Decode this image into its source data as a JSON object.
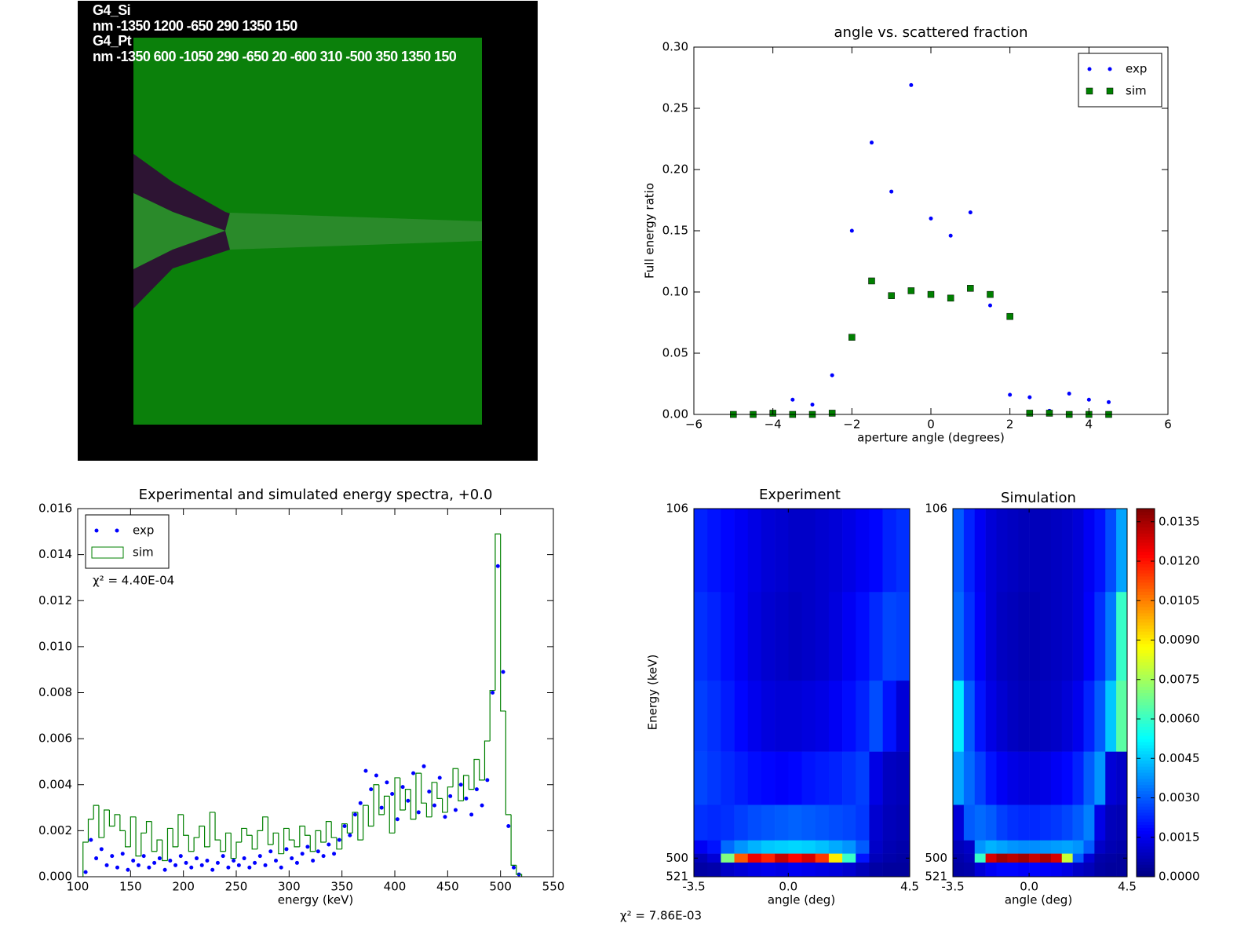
{
  "geometry": {
    "labels": [
      "G4_Si",
      "nm -1350 1200 -650 290 1350 150",
      "G4_Pt",
      "nm -1350 600 -1050 290 -650 20 -600 310 -500 350 1350 150"
    ]
  },
  "chart_data": [
    {
      "type": "scatter",
      "title": "angle vs. scattered fraction",
      "x_label": "aperture angle (degrees)",
      "y_label": "Full energy ratio",
      "x": [
        -5,
        -4.5,
        -4,
        -3.5,
        -3,
        -2.5,
        -2,
        -1.5,
        -1,
        -0.5,
        0,
        0.5,
        1,
        1.5,
        2,
        2.5,
        3,
        3.5,
        4,
        4.5
      ],
      "series": [
        {
          "name": "exp",
          "color": "#0000ff",
          "marker": "dot",
          "values": [
            0,
            0,
            0.001,
            0.012,
            0.008,
            0.032,
            0.15,
            0.222,
            0.182,
            0.269,
            0.16,
            0.146,
            0.165,
            0.089,
            0.016,
            0.014,
            0.003,
            0.017,
            0.012,
            0.01
          ]
        },
        {
          "name": "sim",
          "color": "#008000",
          "marker": "square",
          "values": [
            0,
            0,
            0.001,
            0,
            0,
            0.001,
            0.063,
            0.109,
            0.097,
            0.101,
            0.098,
            0.095,
            0.103,
            0.098,
            0.08,
            0.001,
            0.001,
            0,
            0,
            0
          ]
        }
      ],
      "xlim": [
        -6,
        6
      ],
      "xticks": [
        {
          "value": -6,
          "label": "−6"
        },
        {
          "value": -4,
          "label": "−4"
        },
        {
          "value": -2,
          "label": "−2"
        },
        0,
        2,
        4,
        6
      ],
      "ylim": [
        0,
        0.3
      ],
      "yticks": [
        {
          "value": 0,
          "label": "0.00"
        },
        {
          "value": 0.05,
          "label": "0.05"
        },
        {
          "value": 0.1,
          "label": "0.10"
        },
        {
          "value": 0.15,
          "label": "0.15"
        },
        {
          "value": 0.2,
          "label": "0.20"
        },
        {
          "value": 0.25,
          "label": "0.25"
        },
        {
          "value": 0.3,
          "label": "0.30"
        }
      ],
      "legend": "upper right"
    },
    {
      "type": "spectrum",
      "title": "Experimental and simulated energy spectra, +0.0",
      "x_label": "energy (keV)",
      "annotation": "χ² = 4.40E-04",
      "series": [
        {
          "name": "exp",
          "color": "#0000ff",
          "marker": "dot",
          "x": [
            107.5,
            112.5,
            117.5,
            122.5,
            127.5,
            132.5,
            137.5,
            142.5,
            147.5,
            152.5,
            157.5,
            162.5,
            167.5,
            172.5,
            177.5,
            182.5,
            187.5,
            192.5,
            197.5,
            202.5,
            207.5,
            212.5,
            217.5,
            222.5,
            227.5,
            232.5,
            237.5,
            242.5,
            247.5,
            252.5,
            257.5,
            262.5,
            267.5,
            272.5,
            277.5,
            282.5,
            287.5,
            292.5,
            297.5,
            302.5,
            307.5,
            312.5,
            317.5,
            322.5,
            327.5,
            332.5,
            337.5,
            342.5,
            347.5,
            352.5,
            357.5,
            362.5,
            367.5,
            372.5,
            377.5,
            382.5,
            387.5,
            392.5,
            397.5,
            402.5,
            407.5,
            412.5,
            417.5,
            422.5,
            427.5,
            432.5,
            437.5,
            442.5,
            447.5,
            452.5,
            457.5,
            462.5,
            467.5,
            472.5,
            477.5,
            482.5,
            487.5,
            492.5,
            497.5,
            502.5,
            507.5,
            512.5,
            517.5
          ],
          "values": [
            0.0002,
            0.0016,
            0.0008,
            0.0012,
            0.0005,
            0.0009,
            0.0004,
            0.001,
            0.0003,
            0.0007,
            0.0005,
            0.0009,
            0.0004,
            0.0006,
            0.0008,
            0.0003,
            0.0007,
            0.0005,
            0.0009,
            0.0006,
            0.0004,
            0.0008,
            0.0005,
            0.0007,
            0.0003,
            0.0006,
            0.0009,
            0.0004,
            0.0007,
            0.0005,
            0.0008,
            0.0004,
            0.0006,
            0.0009,
            0.0005,
            0.0011,
            0.0007,
            0.0004,
            0.0012,
            0.0008,
            0.0006,
            0.001,
            0.0013,
            0.0007,
            0.0011,
            0.0009,
            0.0014,
            0.001,
            0.0016,
            0.0022,
            0.0018,
            0.0027,
            0.0032,
            0.0046,
            0.0038,
            0.0044,
            0.003,
            0.0041,
            0.0036,
            0.0025,
            0.0039,
            0.0033,
            0.0045,
            0.0028,
            0.0048,
            0.0037,
            0.0031,
            0.0043,
            0.0026,
            0.0035,
            0.0029,
            0.004,
            0.0034,
            0.0027,
            0.0038,
            0.0031,
            0.0042,
            0.008,
            0.0135,
            0.0089,
            0.0022,
            0.0004,
            0.0001
          ]
        },
        {
          "name": "sim",
          "color": "#008000",
          "style": "step",
          "bins": [
            105,
            110,
            115,
            120,
            125,
            130,
            135,
            140,
            145,
            150,
            155,
            160,
            165,
            170,
            175,
            180,
            185,
            190,
            195,
            200,
            205,
            210,
            215,
            220,
            225,
            230,
            235,
            240,
            245,
            250,
            255,
            260,
            265,
            270,
            275,
            280,
            285,
            290,
            295,
            300,
            305,
            310,
            315,
            320,
            325,
            330,
            335,
            340,
            345,
            350,
            355,
            360,
            365,
            370,
            375,
            380,
            385,
            390,
            395,
            400,
            405,
            410,
            415,
            420,
            425,
            430,
            435,
            440,
            445,
            450,
            455,
            460,
            465,
            470,
            475,
            480,
            485,
            490,
            495,
            500,
            505,
            510,
            515,
            520
          ],
          "values": [
            0.0015,
            0.0025,
            0.0031,
            0.0017,
            0.0029,
            0.0022,
            0.0027,
            0.002,
            0.0013,
            0.0026,
            0.0009,
            0.0019,
            0.0024,
            0.0011,
            0.0016,
            0.0007,
            0.0021,
            0.0013,
            0.0027,
            0.0018,
            0.0011,
            0.0017,
            0.0022,
            0.0013,
            0.0028,
            0.0016,
            0.0011,
            0.0019,
            0.0008,
            0.0015,
            0.0021,
            0.0018,
            0.0012,
            0.002,
            0.0026,
            0.0014,
            0.0019,
            0.001,
            0.0021,
            0.0016,
            0.0013,
            0.0022,
            0.0018,
            0.0011,
            0.002,
            0.0015,
            0.0024,
            0.0017,
            0.0012,
            0.0023,
            0.0019,
            0.0028,
            0.0016,
            0.0031,
            0.0022,
            0.004,
            0.0027,
            0.0035,
            0.0019,
            0.0043,
            0.0029,
            0.0038,
            0.0025,
            0.0045,
            0.0032,
            0.0026,
            0.0041,
            0.0034,
            0.0028,
            0.0039,
            0.0047,
            0.0033,
            0.0044,
            0.0038,
            0.0051,
            0.0042,
            0.0059,
            0.0081,
            0.0149,
            0.0072,
            0.0027,
            0.0005,
            0.0001
          ]
        }
      ],
      "xlim": [
        100,
        550
      ],
      "xticks": [
        100,
        150,
        200,
        250,
        300,
        350,
        400,
        450,
        500,
        550
      ],
      "ylim": [
        0,
        0.016
      ],
      "yticks": [
        {
          "value": 0,
          "label": "0.000"
        },
        {
          "value": 0.002,
          "label": "0.002"
        },
        {
          "value": 0.004,
          "label": "0.004"
        },
        {
          "value": 0.006,
          "label": "0.006"
        },
        {
          "value": 0.008,
          "label": "0.008"
        },
        {
          "value": 0.01,
          "label": "0.010"
        },
        {
          "value": 0.012,
          "label": "0.012"
        },
        {
          "value": 0.014,
          "label": "0.014"
        },
        {
          "value": 0.016,
          "label": "0.016"
        }
      ],
      "legend": "upper left"
    },
    {
      "type": "heatmap",
      "title": "Experiment",
      "x_label": "angle (deg)",
      "y_label": "Energy (keV)",
      "annotation": "χ² = 7.86E-03",
      "xlim": [
        -3.5,
        4.5
      ],
      "xticks": [
        -3.5,
        {
          "value": 0,
          "label": "0.0"
        },
        4.5
      ],
      "ylim": [
        106,
        521
      ],
      "yticks": [
        106,
        500,
        521
      ],
      "yinvert": true,
      "colormap": "jet",
      "clim": [
        0,
        0.014
      ],
      "angle_bins": [
        -3.5,
        -3,
        -2.5,
        -2,
        -1.5,
        -1,
        -0.5,
        0,
        0.5,
        1,
        1.5,
        2,
        2.5,
        3,
        3.5,
        4,
        4.5
      ],
      "energy_bins": [
        106,
        200,
        300,
        380,
        440,
        480,
        495,
        505,
        521
      ],
      "z": [
        [
          0.0022,
          0.002,
          0.0018,
          0.0016,
          0.0014,
          0.0012,
          0.0011,
          0.001,
          0.001,
          0.0011,
          0.0012,
          0.0014,
          0.0016,
          0.0018,
          0.0022,
          0.0024
        ],
        [
          0.0024,
          0.0022,
          0.0019,
          0.0016,
          0.0013,
          0.0011,
          0.001,
          0.0009,
          0.001,
          0.0011,
          0.0013,
          0.0016,
          0.0019,
          0.0023,
          0.0027,
          0.0026
        ],
        [
          0.0026,
          0.0024,
          0.0021,
          0.0018,
          0.0015,
          0.0013,
          0.0012,
          0.0012,
          0.0013,
          0.0014,
          0.0016,
          0.0019,
          0.0022,
          0.0028,
          0.002,
          0.0012
        ],
        [
          0.0027,
          0.0025,
          0.0023,
          0.0021,
          0.0019,
          0.0018,
          0.0017,
          0.0018,
          0.002,
          0.0021,
          0.0022,
          0.0024,
          0.0026,
          0.0014,
          0.0009,
          0.0008
        ],
        [
          0.0024,
          0.0023,
          0.0024,
          0.0026,
          0.0028,
          0.0029,
          0.003,
          0.0031,
          0.003,
          0.0029,
          0.0028,
          0.0027,
          0.0025,
          0.0011,
          0.0008,
          0.0007
        ],
        [
          0.0016,
          0.002,
          0.0032,
          0.0038,
          0.0042,
          0.0045,
          0.0046,
          0.0047,
          0.0046,
          0.0044,
          0.0041,
          0.0038,
          0.003,
          0.001,
          0.0007,
          0.0006
        ],
        [
          0.0008,
          0.0012,
          0.007,
          0.011,
          0.0125,
          0.0118,
          0.013,
          0.0122,
          0.0128,
          0.0115,
          0.009,
          0.006,
          0.002,
          0.0008,
          0.0006,
          0.0005
        ],
        [
          0.0005,
          0.0006,
          0.001,
          0.0012,
          0.0014,
          0.0015,
          0.0014,
          0.0016,
          0.0015,
          0.0014,
          0.0013,
          0.0011,
          0.0008,
          0.0005,
          0.0004,
          0.0004
        ]
      ]
    },
    {
      "type": "heatmap",
      "title": "Simulation",
      "x_label": "angle (deg)",
      "xlim": [
        -3.5,
        4.5
      ],
      "xticks": [
        -3.5,
        {
          "value": 0,
          "label": "0.0"
        },
        4.5
      ],
      "ylim": [
        106,
        521
      ],
      "yticks": [
        106,
        500,
        521
      ],
      "yinvert": true,
      "colormap": "jet",
      "clim": [
        0,
        0.014
      ],
      "cticks": [
        {
          "value": 0,
          "label": "0.0000"
        },
        {
          "value": 0.0015,
          "label": "0.0015"
        },
        {
          "value": 0.003,
          "label": "0.0030"
        },
        {
          "value": 0.0045,
          "label": "0.0045"
        },
        {
          "value": 0.006,
          "label": "0.0060"
        },
        {
          "value": 0.0075,
          "label": "0.0075"
        },
        {
          "value": 0.009,
          "label": "0.0090"
        },
        {
          "value": 0.0105,
          "label": "0.0105"
        },
        {
          "value": 0.012,
          "label": "0.0120"
        },
        {
          "value": 0.0135,
          "label": "0.0135"
        }
      ],
      "angle_bins": [
        -3.5,
        -3,
        -2.5,
        -2,
        -1.5,
        -1,
        -0.5,
        0,
        0.5,
        1,
        1.5,
        2,
        2.5,
        3,
        3.5,
        4,
        4.5
      ],
      "energy_bins": [
        106,
        200,
        300,
        380,
        440,
        480,
        495,
        505,
        521
      ],
      "z": [
        [
          0.003,
          0.0022,
          0.0016,
          0.0012,
          0.001,
          0.0009,
          0.0008,
          0.0008,
          0.0008,
          0.0009,
          0.001,
          0.0012,
          0.0016,
          0.002,
          0.0028,
          0.004
        ],
        [
          0.0032,
          0.0024,
          0.0017,
          0.0012,
          0.0009,
          0.0008,
          0.0007,
          0.0007,
          0.0008,
          0.0009,
          0.001,
          0.0012,
          0.0017,
          0.0024,
          0.0034,
          0.006
        ],
        [
          0.005,
          0.003,
          0.002,
          0.0014,
          0.0011,
          0.0009,
          0.0008,
          0.0008,
          0.0009,
          0.001,
          0.0012,
          0.0015,
          0.0022,
          0.003,
          0.0045,
          0.0065
        ],
        [
          0.004,
          0.0032,
          0.0026,
          0.002,
          0.0016,
          0.0014,
          0.0013,
          0.0013,
          0.0014,
          0.0016,
          0.0018,
          0.0022,
          0.003,
          0.0038,
          0.0012,
          0.001
        ],
        [
          0.0012,
          0.003,
          0.0032,
          0.003,
          0.0026,
          0.0024,
          0.0023,
          0.0023,
          0.0024,
          0.0025,
          0.0027,
          0.003,
          0.0035,
          0.0014,
          0.0008,
          0.0007
        ],
        [
          0.0008,
          0.001,
          0.0038,
          0.0042,
          0.004,
          0.0038,
          0.0037,
          0.0037,
          0.0038,
          0.0039,
          0.004,
          0.0038,
          0.003,
          0.001,
          0.0007,
          0.0006
        ],
        [
          0.0006,
          0.0008,
          0.006,
          0.0128,
          0.0135,
          0.0132,
          0.0135,
          0.013,
          0.0134,
          0.0128,
          0.008,
          0.003,
          0.0012,
          0.0006,
          0.0005,
          0.0004
        ],
        [
          0.0005,
          0.0006,
          0.0012,
          0.0016,
          0.0018,
          0.0018,
          0.0017,
          0.0018,
          0.0017,
          0.0016,
          0.0014,
          0.001,
          0.0008,
          0.0005,
          0.0004,
          0.0004
        ]
      ]
    }
  ]
}
